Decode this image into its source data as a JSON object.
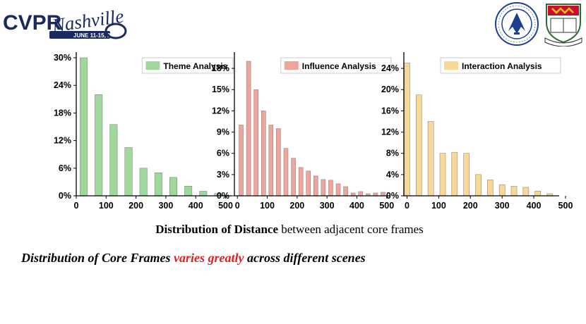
{
  "header": {
    "conference_logo": {
      "text": "CVPR",
      "script_text": "Nashville",
      "date": "JUNE 11-15, 2025"
    },
    "university_logo_left": {
      "name": "beihang-university-seal"
    },
    "university_logo_right": {
      "name": "hku-crest"
    }
  },
  "caption": {
    "bold": "Distribution of Distance",
    "rest": " between adjacent core frames"
  },
  "subtitle": {
    "before": "Distribution of Core Frames ",
    "highlight": "varies greatly",
    "after": " across different scenes",
    "highlight_color": "#e02020"
  },
  "chart_data": [
    {
      "type": "bar",
      "legend": "Theme Analysis",
      "color": "#9fd89a",
      "x": [
        25,
        75,
        125,
        175,
        225,
        275,
        325,
        375,
        425,
        475
      ],
      "values": [
        30,
        22,
        15.5,
        10.5,
        6,
        5,
        4,
        2.1,
        1,
        0.5
      ],
      "xlim": [
        0,
        520
      ],
      "ylim": [
        0,
        30
      ],
      "xticks": [
        "0",
        "100",
        "200",
        "300",
        "400",
        "500"
      ],
      "xtick_values": [
        0,
        100,
        200,
        300,
        400,
        500
      ],
      "yticks": [
        "0%",
        "6%",
        "12%",
        "18%",
        "24%",
        "30%"
      ],
      "ytick_values": [
        0,
        6,
        12,
        18,
        24,
        30
      ],
      "legend_position": "top-right",
      "grid": false
    },
    {
      "type": "bar",
      "legend": "Influence Analysis",
      "color": "#f0a59b",
      "x": [
        12.5,
        37.5,
        62.5,
        87.5,
        112.5,
        137.5,
        162.5,
        187.5,
        212.5,
        237.5,
        262.5,
        287.5,
        312.5,
        337.5,
        362.5,
        387.5,
        412.5,
        437.5,
        462.5,
        487.5
      ],
      "values": [
        10,
        19,
        15,
        12,
        10,
        9.5,
        6.7,
        5.3,
        4,
        3.5,
        2.8,
        2.3,
        2.2,
        1.7,
        1.3,
        0.4,
        0.6,
        0.3,
        0.4,
        0.5
      ],
      "xlim": [
        -10,
        510
      ],
      "ylim": [
        0,
        19.5
      ],
      "xticks": [
        "0",
        "100",
        "200",
        "300",
        "400",
        "500"
      ],
      "xtick_values": [
        0,
        100,
        200,
        300,
        400,
        500
      ],
      "yticks": [
        "0%",
        "3%",
        "6%",
        "9%",
        "12%",
        "15%",
        "18%"
      ],
      "ytick_values": [
        0,
        3,
        6,
        9,
        12,
        15,
        18
      ],
      "legend_position": "top-right",
      "grid": false
    },
    {
      "type": "bar",
      "legend": "Interaction Analysis",
      "color": "#f8d896",
      "x": [
        0,
        37.5,
        75,
        112.5,
        150,
        187.5,
        225,
        262.5,
        300,
        337.5,
        375,
        412.5,
        450
      ],
      "values": [
        25,
        19,
        14,
        8,
        8.2,
        8,
        4,
        3,
        2.1,
        1.8,
        1.6,
        0.9,
        0.4
      ],
      "xlim": [
        -10,
        480
      ],
      "ylim": [
        0,
        26
      ],
      "xticks": [
        "0",
        "100",
        "200",
        "300",
        "400",
        "500"
      ],
      "xtick_values": [
        0,
        100,
        200,
        300,
        400,
        500
      ],
      "yticks": [
        "0%",
        "4%",
        "8%",
        "12%",
        "16%",
        "20%",
        "24%"
      ],
      "ytick_values": [
        0,
        4,
        8,
        12,
        16,
        20,
        24
      ],
      "legend_position": "top-right",
      "grid": false
    }
  ]
}
